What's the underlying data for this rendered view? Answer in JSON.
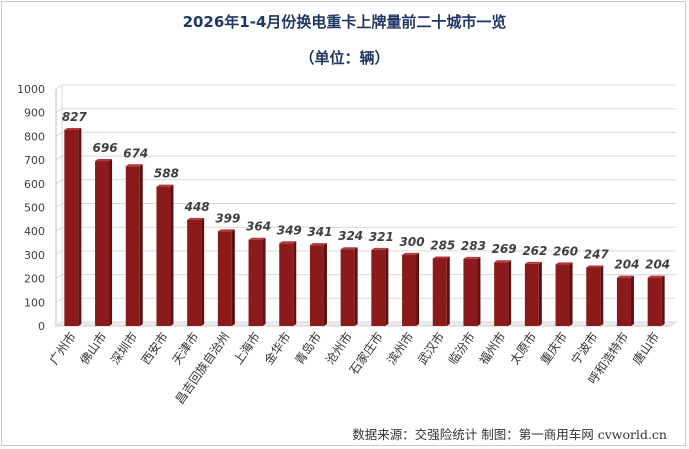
{
  "chart_data": {
    "type": "bar",
    "title": "2026年1-4月份换电重卡上牌量前二十城市一览",
    "subtitle": "（单位：辆）",
    "categories": [
      "广州市",
      "佛山市",
      "深圳市",
      "西安市",
      "天津市",
      "昌吉回族自治州",
      "上海市",
      "金华市",
      "青岛市",
      "沧州市",
      "石家庄市",
      "滨州市",
      "武汉市",
      "临汾市",
      "福州市",
      "太原市",
      "重庆市",
      "宁波市",
      "呼和浩特市",
      "唐山市"
    ],
    "values": [
      827,
      696,
      674,
      588,
      448,
      399,
      364,
      349,
      341,
      324,
      321,
      300,
      285,
      283,
      269,
      262,
      260,
      247,
      204,
      204
    ],
    "yticks": [
      "0",
      "100",
      "200",
      "300",
      "400",
      "500",
      "600",
      "700",
      "800",
      "900",
      "1000"
    ],
    "ylim": [
      0,
      1000
    ],
    "grid": true,
    "legend": "none",
    "bar_color": "#8b1a1a",
    "bar_side_color": "#5e1010",
    "bar_top_color": "#b03a3a"
  },
  "footer": {
    "source": "数据来源：交强险统计  制图：第一商用车网 cvworld.cn"
  }
}
